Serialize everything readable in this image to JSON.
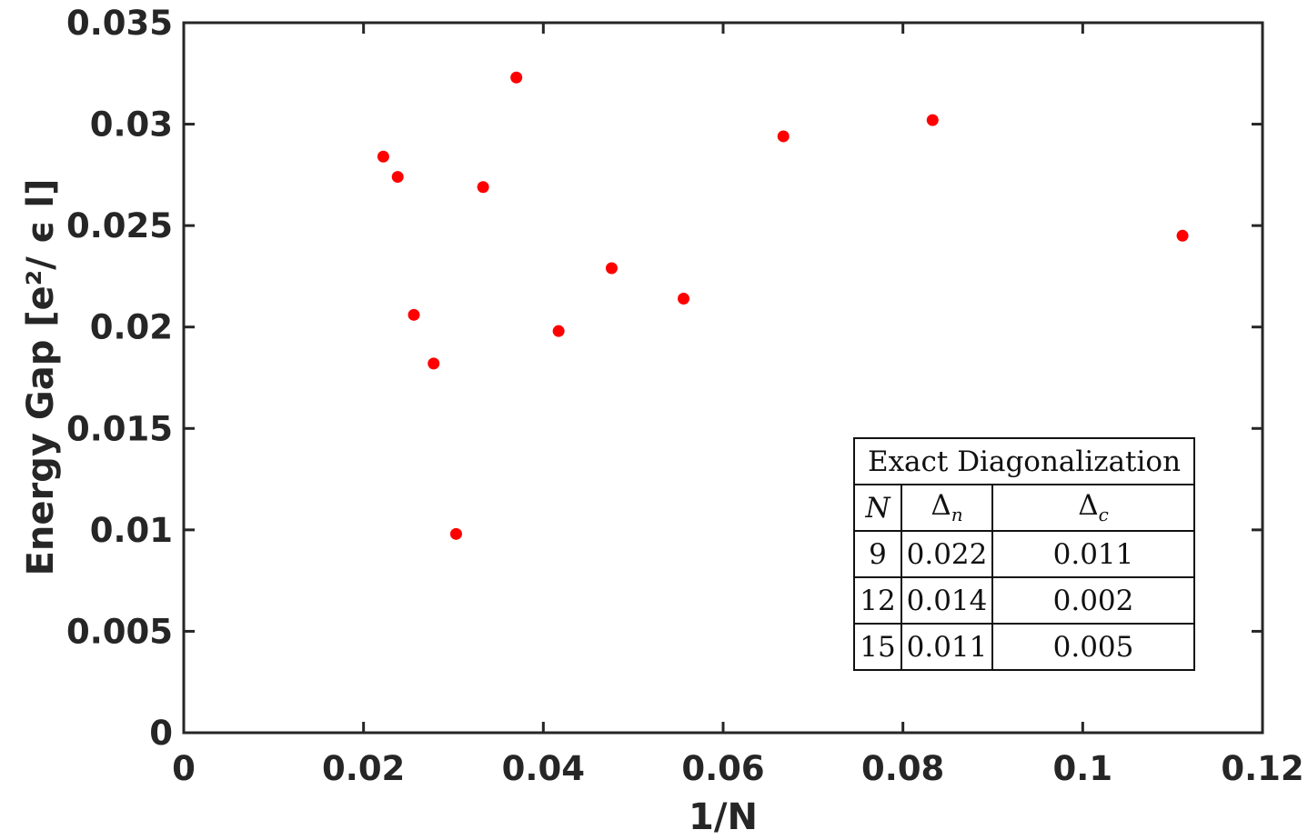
{
  "chart_data": {
    "type": "scatter",
    "xlabel": "1/N",
    "ylabel": "Energy Gap [e²/ ϵ l]",
    "xlim": [
      0,
      0.12
    ],
    "ylim": [
      0,
      0.035
    ],
    "xticks": [
      "0",
      "0.02",
      "0.04",
      "0.06",
      "0.08",
      "0.1",
      "0.12"
    ],
    "yticks": [
      "0",
      "0.005",
      "0.01",
      "0.015",
      "0.02",
      "0.025",
      "0.03",
      "0.035"
    ],
    "grid": false,
    "marker_color": "#ff0000",
    "series": [
      {
        "points": [
          {
            "x": 0.0222,
            "y": 0.0284
          },
          {
            "x": 0.0238,
            "y": 0.0274
          },
          {
            "x": 0.0256,
            "y": 0.0206
          },
          {
            "x": 0.0278,
            "y": 0.0182
          },
          {
            "x": 0.0303,
            "y": 0.0098
          },
          {
            "x": 0.0333,
            "y": 0.0269
          },
          {
            "x": 0.037,
            "y": 0.0323
          },
          {
            "x": 0.0417,
            "y": 0.0198
          },
          {
            "x": 0.0476,
            "y": 0.0229
          },
          {
            "x": 0.0556,
            "y": 0.0214
          },
          {
            "x": 0.0667,
            "y": 0.0294
          },
          {
            "x": 0.0833,
            "y": 0.0302
          },
          {
            "x": 0.1111,
            "y": 0.0245
          }
        ]
      }
    ]
  },
  "table": {
    "title": "Exact Diagonalization",
    "headers": {
      "n": "N",
      "dn_symbol": "Δ",
      "dn_sub": "n",
      "dc_symbol": "Δ",
      "dc_sub": "c"
    },
    "rows": [
      {
        "n": "9",
        "dn": "0.022",
        "dc": "0.011"
      },
      {
        "n": "12",
        "dn": "0.014",
        "dc": "0.002"
      },
      {
        "n": "15",
        "dn": "0.011",
        "dc": "0.005"
      }
    ]
  }
}
